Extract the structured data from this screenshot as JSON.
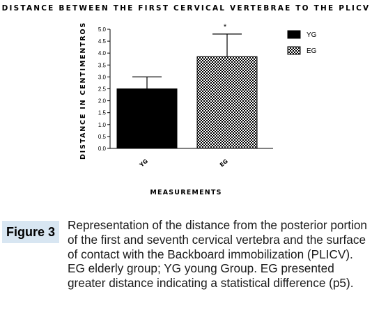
{
  "chart_data": {
    "type": "bar",
    "title": "DISTANCE BETWEEN THE FIRST CERVICAL VERTEBRAE TO THE PLICV",
    "xlabel": "MEASUREMENTS",
    "ylabel": "DISTANCE IN CENTIMENTROS",
    "ylim": [
      0,
      5
    ],
    "yticks": [
      "0.0",
      "0.5",
      "1.0",
      "1.5",
      "2.0",
      "2.5",
      "3.0",
      "3.5",
      "4.0",
      "4.5",
      "5.0"
    ],
    "categories": [
      "YG",
      "EG"
    ],
    "values": [
      2.5,
      3.85
    ],
    "error_upper": [
      3.0,
      4.8
    ],
    "annotations": [
      {
        "category": "EG",
        "text": "*"
      }
    ],
    "legend": {
      "position": "right",
      "entries": [
        {
          "label": "YG",
          "fill": "solid-black"
        },
        {
          "label": "EG",
          "fill": "checkered"
        }
      ]
    },
    "colors": {
      "YG": "#000000",
      "EG_pattern": "#000000",
      "EG_background": "#ffffff"
    }
  },
  "caption": {
    "label": "Figure 3",
    "text": "Representation of the distance from the posterior portion of the first and seventh cervical vertebra and the surface of contact with the Backboard immobilization (PLICV). EG elderly group; YG young Group. EG presented greater distance indicating a statistical difference (p5).",
    "label_background": "#d8e6f2"
  }
}
